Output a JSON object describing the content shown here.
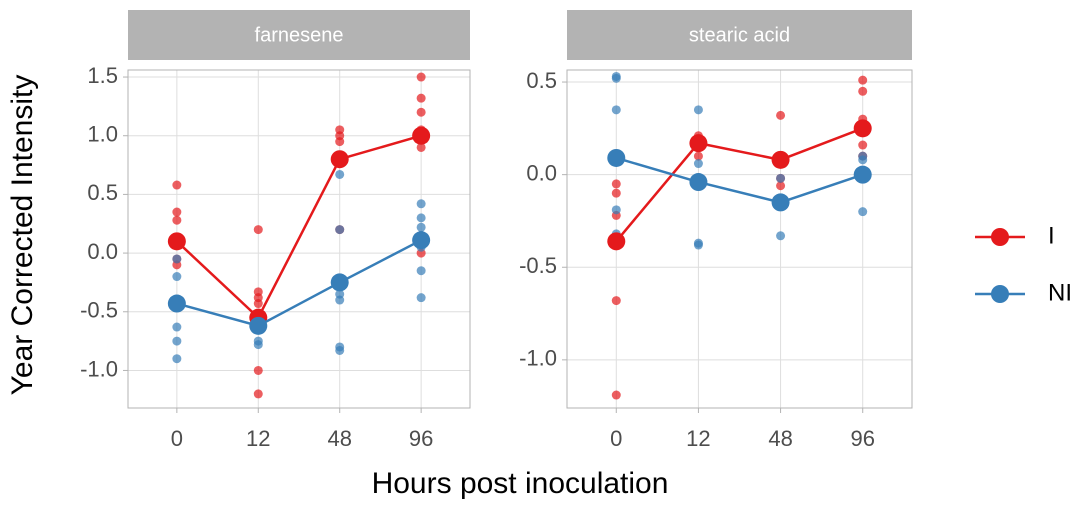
{
  "x_label": "Hours post inoculation",
  "y_label": "Year Corrected Intensity",
  "chart_data": [
    {
      "type": "line",
      "title": "farnesene",
      "categories": [
        "0",
        "12",
        "48",
        "96"
      ],
      "ylim": [
        -1.32,
        1.56
      ],
      "yticks": [
        {
          "value": -1.0,
          "label": "-1.0"
        },
        -0.5,
        {
          "value": 0,
          "label": "0.0"
        },
        0.5,
        {
          "value": 1.0,
          "label": "1.0"
        },
        1.5
      ],
      "grid": true,
      "series": [
        {
          "name": "I",
          "color": "#e41a1c",
          "values": [
            0.1,
            -0.55,
            0.8,
            1.0
          ],
          "points": [
            [
              0.58,
              0.35,
              0.28,
              -0.05,
              -0.1
            ],
            [
              0.2,
              -0.33,
              -0.38,
              -0.43,
              -1.0,
              -1.2
            ],
            [
              1.05,
              1.0,
              0.95,
              0.8,
              0.2
            ],
            [
              1.5,
              1.32,
              1.2,
              1.05,
              0.98,
              0.9,
              0.0
            ]
          ]
        },
        {
          "name": "NI",
          "color": "#377eb8",
          "values": [
            -0.43,
            -0.62,
            -0.25,
            0.11
          ],
          "points": [
            [
              -0.05,
              -0.2,
              -0.63,
              -0.75,
              -0.9
            ],
            [
              -0.55,
              -0.65,
              -0.75,
              -0.78
            ],
            [
              0.67,
              0.2,
              -0.35,
              -0.4,
              -0.8,
              -0.83
            ],
            [
              0.42,
              0.3,
              0.22,
              0.15,
              0.05,
              -0.15,
              -0.38
            ]
          ]
        }
      ]
    },
    {
      "type": "line",
      "title": "stearic acid",
      "categories": [
        "0",
        "12",
        "48",
        "96"
      ],
      "ylim": [
        -1.26,
        0.565
      ],
      "yticks": [
        {
          "value": -1.0,
          "label": "-1.0"
        },
        -0.5,
        {
          "value": 0,
          "label": "0.0"
        },
        0.5
      ],
      "grid": true,
      "series": [
        {
          "name": "I",
          "color": "#e41a1c",
          "values": [
            -0.36,
            0.17,
            0.08,
            0.25
          ],
          "points": [
            [
              -0.05,
              -0.1,
              -0.22,
              -0.68,
              -1.19
            ],
            [
              0.21,
              0.15,
              0.1
            ],
            [
              0.32,
              -0.02,
              -0.06
            ],
            [
              0.51,
              0.45,
              0.3,
              0.16,
              0.1
            ]
          ]
        },
        {
          "name": "NI",
          "color": "#377eb8",
          "values": [
            0.09,
            -0.04,
            -0.15,
            0.0
          ],
          "points": [
            [
              0.53,
              0.52,
              0.35,
              -0.19,
              -0.32
            ],
            [
              0.35,
              0.06,
              -0.37,
              -0.38
            ],
            [
              -0.02,
              -0.33
            ],
            [
              0.1,
              0.08,
              -0.2
            ]
          ]
        }
      ]
    }
  ]
}
